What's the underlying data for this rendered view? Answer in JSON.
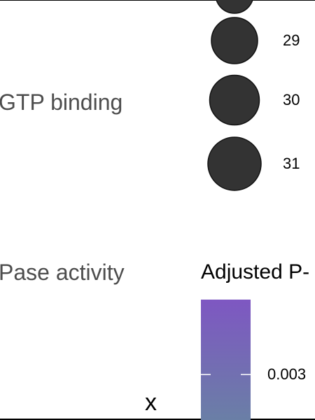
{
  "chart_data": {
    "type": "scatter",
    "categories": [
      "GTP binding",
      "Pase activity"
    ],
    "xlabel": "x",
    "legend_size": {
      "entries": [
        {
          "value": 29,
          "label": "29"
        },
        {
          "value": 30,
          "label": "30"
        },
        {
          "value": 31,
          "label": "31"
        }
      ],
      "color": "#333333"
    },
    "legend_color": {
      "title": "Adjusted P-",
      "ticks": [
        {
          "value": 0.003,
          "label": "0.003"
        }
      ],
      "colors": [
        "#7e57c2",
        "#6a7fa6"
      ]
    }
  }
}
